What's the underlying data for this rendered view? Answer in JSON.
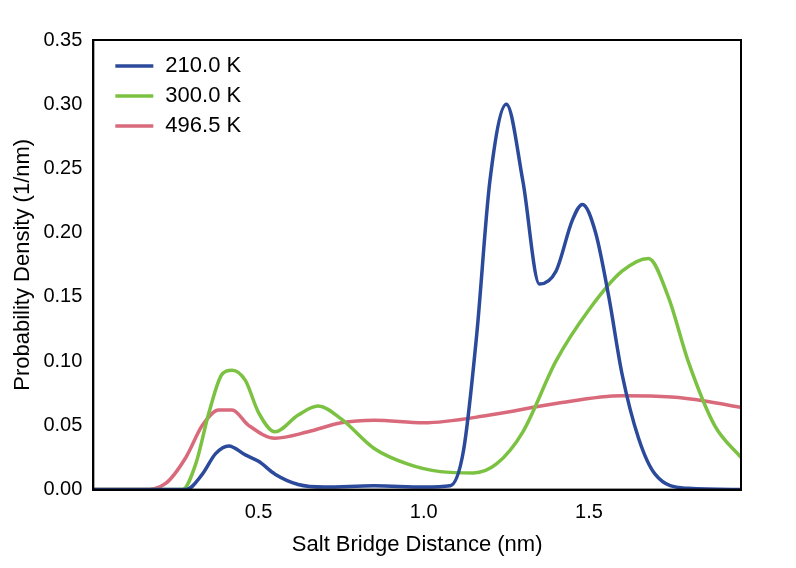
{
  "chart_data": {
    "type": "line",
    "x_label": "Salt Bridge Distance (nm)",
    "y_label": "Probability Density (1/nm)",
    "xlim": [
      0,
      1.96
    ],
    "xticks": [
      0.5,
      {
        "value": 1,
        "label": "1.0"
      },
      1.5
    ],
    "ylim": [
      0,
      0.35
    ],
    "yticks": [
      {
        "value": 0,
        "label": "0.00"
      },
      0.05,
      {
        "value": 0.1,
        "label": "0.10"
      },
      0.15,
      {
        "value": 0.2,
        "label": "0.20"
      },
      0.25,
      {
        "value": 0.3,
        "label": "0.30"
      },
      0.35
    ],
    "grid": false,
    "legend": "upper left",
    "series": [
      {
        "name": "210.0 K",
        "color": "#2b4a9b",
        "x": [
          0,
          0.28,
          0.33,
          0.37,
          0.41,
          0.46,
          0.5,
          0.55,
          0.62,
          0.7,
          0.85,
          1.0,
          1.08,
          1.12,
          1.16,
          1.2,
          1.25,
          1.3,
          1.35,
          1.4,
          1.45,
          1.48,
          1.52,
          1.56,
          1.6,
          1.65,
          1.7,
          1.8,
          1.96
        ],
        "values": [
          0,
          0,
          0.012,
          0.028,
          0.034,
          0.027,
          0.022,
          0.012,
          0.004,
          0.002,
          0.003,
          0.002,
          0.003,
          0.03,
          0.12,
          0.24,
          0.3,
          0.24,
          0.16,
          0.17,
          0.21,
          0.222,
          0.2,
          0.15,
          0.09,
          0.04,
          0.012,
          0.001,
          0
        ]
      },
      {
        "name": "300.0 K",
        "color": "#7cc242",
        "x": [
          0,
          0.27,
          0.31,
          0.35,
          0.39,
          0.42,
          0.46,
          0.5,
          0.55,
          0.62,
          0.68,
          0.75,
          0.85,
          0.95,
          1.05,
          1.15,
          1.22,
          1.3,
          1.4,
          1.5,
          1.6,
          1.68,
          1.74,
          1.8,
          1.88,
          1.96
        ],
        "values": [
          0,
          0,
          0.02,
          0.06,
          0.09,
          0.093,
          0.085,
          0.06,
          0.045,
          0.058,
          0.065,
          0.055,
          0.032,
          0.02,
          0.014,
          0.013,
          0.02,
          0.045,
          0.1,
          0.14,
          0.17,
          0.18,
          0.15,
          0.1,
          0.05,
          0.025
        ]
      },
      {
        "name": "496.5 K",
        "color": "#d96a7c",
        "x": [
          0,
          0.15,
          0.22,
          0.28,
          0.33,
          0.38,
          0.42,
          0.47,
          0.55,
          0.65,
          0.75,
          0.85,
          1.0,
          1.2,
          1.4,
          1.6,
          1.75,
          1.85,
          1.96
        ],
        "values": [
          0,
          0,
          0.005,
          0.025,
          0.05,
          0.062,
          0.062,
          0.05,
          0.04,
          0.045,
          0.052,
          0.054,
          0.052,
          0.058,
          0.067,
          0.073,
          0.072,
          0.069,
          0.064
        ]
      }
    ]
  }
}
